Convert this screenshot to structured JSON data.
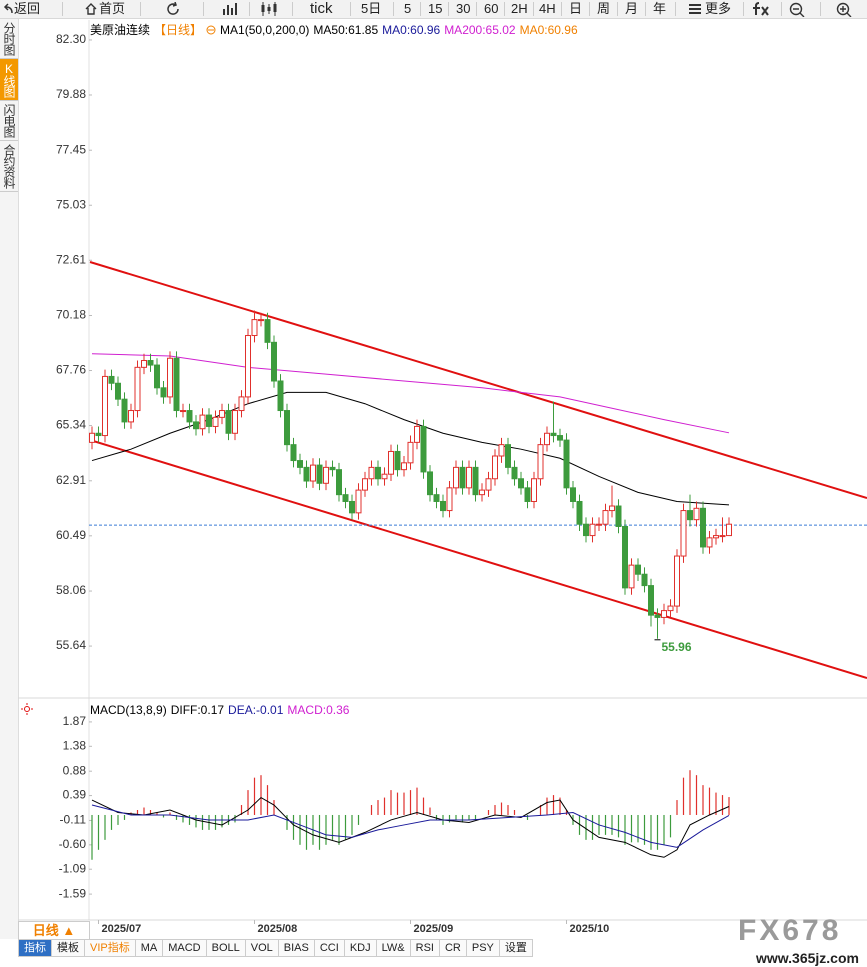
{
  "toolbar": {
    "buttons": [
      "返回",
      "首页",
      "tick",
      "5日",
      "5",
      "15",
      "30",
      "60",
      "2H",
      "4H",
      "日",
      "周",
      "月",
      "年",
      "更多"
    ]
  },
  "sidebar": {
    "tabs": [
      "分时图",
      "K线图",
      "闪电图",
      "合约资料"
    ]
  },
  "chart_data": [
    {
      "type": "candlestick",
      "title": "美原油连续",
      "legend": [
        {
          "text": "【日线】",
          "color": "#f08000"
        },
        {
          "text": "MA1(50,0,200,0)",
          "color": "#000000"
        },
        {
          "text": "MA50:61.85",
          "color": "#000000"
        },
        {
          "text": "MA0:60.96",
          "color": "#1a1a9a"
        },
        {
          "text": "MA200:65.02",
          "color": "#d020d0"
        },
        {
          "text": "MA0:60.96",
          "color": "#f08000"
        }
      ],
      "open": [
        64.6,
        65.0,
        64.9,
        67.5,
        67.2,
        66.5,
        65.5,
        66.0,
        67.9,
        68.2,
        68.0,
        67.0,
        66.6,
        68.3,
        66.0,
        66.0,
        65.5,
        65.2,
        65.8,
        65.3,
        65.7,
        66.0,
        65.0,
        66.0,
        66.6,
        69.3,
        70.0,
        70.0,
        69.0,
        67.3,
        66.0,
        64.5,
        63.8,
        63.5,
        62.9,
        63.6,
        62.8,
        63.5,
        63.4,
        62.3,
        62.0,
        61.5,
        62.5,
        63.0,
        63.5,
        63.0,
        63.2,
        64.2,
        63.4,
        63.7,
        64.6,
        65.3,
        63.3,
        62.3,
        62.0,
        61.6,
        62.6,
        63.5,
        62.6,
        63.5,
        62.3,
        62.5,
        63.0,
        64.0,
        64.5,
        63.5,
        63.0,
        62.6,
        62.0,
        63.0,
        64.5,
        65.0,
        64.9,
        64.7,
        62.6,
        62.0,
        61.0,
        60.5,
        61.0,
        61.0,
        61.6,
        61.8,
        60.9,
        58.2,
        59.2,
        58.8,
        58.3,
        57.0,
        56.9,
        57.2,
        57.4,
        59.6,
        61.6,
        61.2,
        61.7,
        60.0,
        60.4,
        60.5,
        60.5
      ],
      "high": [
        65.3,
        65.3,
        67.8,
        67.8,
        67.5,
        66.8,
        66.3,
        68.2,
        68.5,
        68.5,
        68.3,
        67.3,
        68.6,
        68.6,
        66.3,
        66.3,
        65.8,
        66.1,
        66.1,
        66.0,
        66.3,
        66.3,
        66.3,
        66.9,
        69.6,
        70.4,
        70.3,
        70.3,
        69.3,
        67.6,
        66.3,
        64.8,
        64.1,
        63.8,
        63.9,
        63.9,
        63.8,
        63.8,
        63.7,
        62.6,
        62.3,
        62.8,
        63.3,
        63.8,
        63.8,
        63.5,
        64.5,
        64.5,
        64.0,
        64.9,
        65.6,
        65.6,
        63.6,
        62.6,
        62.3,
        62.9,
        63.8,
        63.8,
        63.8,
        63.8,
        62.8,
        63.3,
        64.3,
        64.8,
        64.8,
        63.8,
        63.3,
        62.9,
        63.3,
        64.8,
        65.3,
        66.4,
        65.2,
        65.0,
        62.9,
        62.3,
        61.3,
        61.3,
        61.3,
        61.9,
        62.7,
        62.1,
        61.2,
        59.5,
        59.5,
        59.1,
        58.6,
        57.3,
        57.5,
        57.7,
        59.9,
        61.9,
        62.3,
        62.0,
        62.0,
        60.7,
        60.8,
        61.3,
        61.3
      ],
      "low": [
        64.3,
        64.6,
        64.6,
        66.9,
        66.2,
        65.2,
        65.2,
        65.7,
        67.6,
        67.7,
        66.7,
        66.3,
        66.3,
        65.7,
        65.7,
        65.2,
        64.9,
        64.9,
        65.0,
        65.0,
        65.4,
        64.7,
        64.7,
        65.7,
        66.3,
        69.0,
        69.7,
        68.7,
        67.0,
        65.7,
        64.2,
        63.5,
        63.2,
        62.6,
        62.6,
        62.5,
        62.5,
        63.1,
        62.0,
        61.7,
        61.2,
        61.2,
        62.2,
        62.7,
        62.7,
        62.7,
        62.9,
        63.1,
        63.1,
        63.4,
        64.3,
        63.0,
        62.0,
        61.7,
        61.3,
        61.3,
        62.3,
        62.3,
        62.3,
        62.0,
        62.0,
        62.2,
        62.7,
        63.7,
        63.2,
        62.7,
        62.3,
        61.7,
        61.7,
        62.7,
        64.2,
        64.6,
        64.4,
        62.3,
        61.7,
        60.7,
        60.2,
        60.2,
        60.7,
        60.7,
        61.3,
        60.6,
        57.9,
        57.9,
        58.5,
        58.0,
        56.5,
        55.96,
        56.6,
        56.9,
        57.1,
        59.3,
        60.9,
        60.9,
        59.7,
        59.7,
        60.1,
        60.2,
        60.7
      ],
      "close": [
        65.0,
        64.9,
        67.5,
        67.2,
        66.5,
        65.5,
        66.0,
        67.9,
        68.2,
        68.0,
        67.0,
        66.6,
        68.3,
        66.0,
        66.0,
        65.5,
        65.2,
        65.8,
        65.3,
        65.7,
        66.0,
        65.0,
        66.0,
        66.6,
        69.3,
        70.0,
        70.0,
        69.0,
        67.3,
        66.0,
        64.5,
        63.8,
        63.5,
        62.9,
        63.6,
        62.8,
        63.5,
        63.4,
        62.3,
        62.0,
        61.5,
        62.5,
        63.0,
        63.5,
        63.0,
        63.2,
        64.2,
        63.4,
        63.7,
        64.6,
        65.3,
        63.3,
        62.3,
        62.0,
        61.6,
        62.6,
        63.5,
        62.6,
        63.5,
        62.3,
        62.5,
        63.0,
        64.0,
        64.5,
        63.5,
        63.0,
        62.6,
        62.0,
        63.0,
        64.5,
        65.0,
        64.9,
        64.7,
        62.6,
        62.0,
        61.0,
        60.5,
        61.0,
        61.0,
        61.6,
        61.8,
        60.9,
        58.2,
        59.2,
        58.8,
        58.3,
        57.0,
        56.9,
        57.2,
        57.4,
        59.6,
        61.6,
        61.2,
        61.7,
        60.0,
        60.4,
        60.5,
        60.5,
        61.0
      ],
      "up_color": "#e0302c",
      "down_color": "#3d9b3d",
      "series": [
        {
          "color": "#000000",
          "x": [
            0,
            6,
            12,
            18,
            24,
            30,
            36,
            42,
            48,
            54,
            60,
            66,
            72,
            78,
            84,
            90,
            98
          ],
          "values": [
            63.8,
            64.3,
            65.0,
            65.6,
            66.3,
            66.8,
            66.8,
            66.3,
            65.6,
            65.0,
            64.6,
            64.3,
            63.9,
            63.1,
            62.4,
            62.0,
            61.85
          ]
        },
        {
          "color": "#d020d0",
          "x": [
            0,
            12,
            24,
            36,
            48,
            60,
            72,
            80,
            88,
            98
          ],
          "values": [
            68.5,
            68.4,
            67.9,
            67.6,
            67.3,
            67.0,
            66.6,
            66.1,
            65.6,
            65.02
          ]
        }
      ],
      "price_line": 60.96,
      "price_line_color": "#3a7bd5",
      "ylim": [
        53.4,
        83.09
      ],
      "yticks": [
        {
          "value": 82.3,
          "label": "82.30"
        },
        79.88,
        77.45,
        75.03,
        72.61,
        70.18,
        67.76,
        65.34,
        62.91,
        60.49,
        58.06,
        55.64
      ],
      "xticks": [
        {
          "value": 1,
          "label": "2025/07"
        },
        {
          "value": 25,
          "label": "2025/08"
        },
        {
          "value": 49,
          "label": "2025/09"
        },
        {
          "value": 73,
          "label": "2025/10"
        }
      ]
    },
    {
      "type": "macd",
      "legend": [
        {
          "text": "MACD(13,8,9)",
          "color": "#000000"
        },
        {
          "text": "DIFF:0.17",
          "color": "#000000"
        },
        {
          "text": "DEA:-0.01",
          "color": "#1a1a9a"
        },
        {
          "text": "MACD:0.36",
          "color": "#d020d0"
        }
      ],
      "values": [
        -0.9,
        -0.7,
        -0.5,
        -0.3,
        -0.2,
        -0.1,
        0.05,
        0.1,
        0.15,
        0.1,
        0.05,
        -0.05,
        0.05,
        -0.1,
        -0.15,
        -0.2,
        -0.25,
        -0.3,
        -0.3,
        -0.3,
        -0.25,
        -0.2,
        -0.15,
        0.2,
        0.5,
        0.75,
        0.8,
        0.6,
        0.3,
        0.0,
        -0.3,
        -0.5,
        -0.6,
        -0.7,
        -0.6,
        -0.7,
        -0.6,
        -0.5,
        -0.6,
        -0.5,
        -0.4,
        -0.2,
        0.0,
        0.2,
        0.3,
        0.35,
        0.5,
        0.45,
        0.45,
        0.5,
        0.55,
        0.35,
        0.15,
        -0.1,
        -0.2,
        -0.15,
        -0.1,
        -0.15,
        -0.1,
        -0.1,
        0.0,
        0.1,
        0.2,
        0.25,
        0.2,
        0.1,
        0.0,
        -0.1,
        0.0,
        0.2,
        0.35,
        0.4,
        0.35,
        0.1,
        -0.2,
        -0.4,
        -0.5,
        -0.5,
        -0.4,
        -0.4,
        -0.4,
        -0.45,
        -0.6,
        -0.55,
        -0.55,
        -0.6,
        -0.7,
        -0.7,
        -0.6,
        -0.45,
        0.3,
        0.75,
        0.9,
        0.8,
        0.6,
        0.55,
        0.45,
        0.4,
        0.36
      ],
      "positive_color": "#e0302c",
      "negative_color": "#3d9b3d",
      "series": [
        {
          "color": "#000000",
          "x": [
            0,
            4,
            8,
            12,
            16,
            20,
            24,
            26,
            28,
            31,
            34,
            38,
            42,
            46,
            50,
            54,
            58,
            62,
            66,
            70,
            72,
            74,
            78,
            82,
            86,
            88,
            90,
            92,
            95,
            98
          ],
          "values": [
            0.3,
            0.05,
            0.0,
            0.1,
            -0.1,
            -0.2,
            0.1,
            0.35,
            0.2,
            -0.2,
            -0.4,
            -0.55,
            -0.35,
            -0.1,
            0.05,
            -0.1,
            -0.15,
            0.0,
            -0.05,
            0.25,
            0.3,
            -0.1,
            -0.45,
            -0.55,
            -0.8,
            -0.85,
            -0.7,
            -0.2,
            0.0,
            0.17
          ]
        },
        {
          "color": "#1a1a9a",
          "x": [
            0,
            6,
            12,
            18,
            24,
            28,
            32,
            36,
            40,
            44,
            48,
            52,
            58,
            64,
            70,
            74,
            78,
            82,
            86,
            90,
            94,
            98
          ],
          "values": [
            0.2,
            0.0,
            0.0,
            -0.1,
            -0.1,
            0.0,
            -0.2,
            -0.4,
            -0.45,
            -0.3,
            -0.2,
            -0.1,
            -0.1,
            -0.05,
            0.0,
            0.05,
            -0.2,
            -0.35,
            -0.55,
            -0.65,
            -0.3,
            -0.01
          ]
        }
      ],
      "ylim": [
        -2.07,
        2.25
      ],
      "yticks": [
        1.87,
        1.38,
        0.88,
        0.39,
        -0.11,
        {
          "value": -0.6,
          "label": "-0.60"
        },
        -1.09,
        -1.59
      ]
    }
  ],
  "footer": {
    "period": "日线 ▲",
    "tabs": [
      "指标",
      "模板",
      "VIP指标",
      "MA",
      "MACD",
      "BOLL",
      "VOL",
      "BIAS",
      "CCI",
      "KDJ",
      "LW&",
      "RSI",
      "CR",
      "PSY",
      "设置"
    ]
  },
  "watermark": {
    "logo": "FX678",
    "url": "www.365jz.com"
  }
}
